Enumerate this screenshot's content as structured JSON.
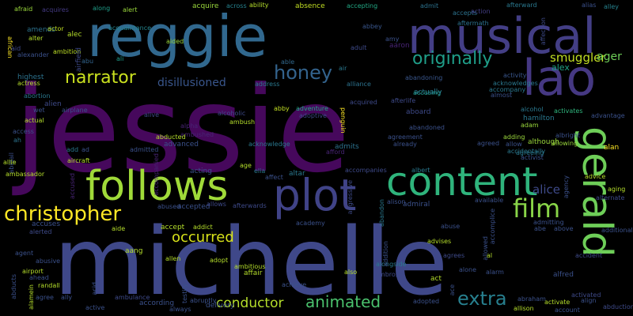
{
  "words": [
    {
      "text": "jessie",
      "color": "#46085c"
    },
    {
      "text": "michelle",
      "color": "#3f4889"
    },
    {
      "text": "reggie",
      "color": "#31688e"
    },
    {
      "text": "musical",
      "color": "#433e85"
    },
    {
      "text": "lao",
      "color": "#453882"
    },
    {
      "text": "content",
      "color": "#2fb47c"
    },
    {
      "text": "follows",
      "color": "#a0da39"
    },
    {
      "text": "plot",
      "color": "#404387"
    },
    {
      "text": "gerald",
      "color": "#6ece58"
    },
    {
      "text": "christopher",
      "color": "#fde725"
    },
    {
      "text": "film",
      "color": "#89d548"
    },
    {
      "text": "animated",
      "color": "#4ac16d"
    },
    {
      "text": "extra",
      "color": "#277f8e"
    },
    {
      "text": "narrator",
      "color": "#cae11f"
    },
    {
      "text": "honey",
      "color": "#33638d"
    },
    {
      "text": "originally",
      "color": "#1f9e89"
    },
    {
      "text": "smuggler",
      "color": "#c2df23"
    },
    {
      "text": "occurred",
      "color": "#d8e219"
    },
    {
      "text": "conductor",
      "color": "#b5de2b"
    },
    {
      "text": "disillusioned",
      "color": "#39568c"
    },
    {
      "text": "alice",
      "color": "#3e4a89"
    },
    {
      "text": "ager",
      "color": "#6ece58"
    },
    {
      "text": "alex",
      "color": "#20a386"
    },
    {
      "text": "afraid",
      "color": "#9bd93c"
    },
    {
      "text": "acquires",
      "color": "#443a83"
    },
    {
      "text": "along",
      "color": "#1f9e89"
    },
    {
      "text": "alert",
      "color": "#9bd93c"
    },
    {
      "text": "acquire",
      "color": "#9bd93c"
    },
    {
      "text": "across",
      "color": "#26828e"
    },
    {
      "text": "ability",
      "color": "#b5de2b"
    },
    {
      "text": "absence",
      "color": "#c2df23"
    },
    {
      "text": "accepting",
      "color": "#22a884"
    },
    {
      "text": "admit",
      "color": "#2c728e"
    },
    {
      "text": "afterward",
      "color": "#2a788e"
    },
    {
      "text": "alias",
      "color": "#3b518b"
    },
    {
      "text": "alley",
      "color": "#26828e"
    },
    {
      "text": "accepts",
      "color": "#2c728e"
    },
    {
      "text": "aftermath",
      "color": "#2c728e"
    },
    {
      "text": "action",
      "color": "#433e85"
    },
    {
      "text": "acquaintance",
      "color": "#25858e"
    },
    {
      "text": "amends",
      "color": "#2c728e"
    },
    {
      "text": "actor",
      "color": "#c2df23"
    },
    {
      "text": "alter",
      "color": "#b5de2b"
    },
    {
      "text": "alec",
      "color": "#b5de2b"
    },
    {
      "text": "aid",
      "color": "#3e4a89"
    },
    {
      "text": "alexander",
      "color": "#3b518b"
    },
    {
      "text": "ambition",
      "color": "#bddf26"
    },
    {
      "text": "abu",
      "color": "#32648e"
    },
    {
      "text": "ali",
      "color": "#1e9b8a"
    },
    {
      "text": "aided",
      "color": "#9bd93c"
    },
    {
      "text": "able",
      "color": "#31688e"
    },
    {
      "text": "adult",
      "color": "#3e4a89"
    },
    {
      "text": "amy",
      "color": "#3b518b"
    },
    {
      "text": "aaron",
      "color": "#482475"
    },
    {
      "text": "abbey",
      "color": "#39568c"
    },
    {
      "text": "african",
      "color": "#fde725"
    },
    {
      "text": "highest",
      "color": "#2c728e"
    },
    {
      "text": "actress",
      "color": "#b5de2b"
    },
    {
      "text": "address",
      "color": "#2a788e"
    },
    {
      "text": "air",
      "color": "#2a788e"
    },
    {
      "text": "alliance",
      "color": "#2c728e"
    },
    {
      "text": "abandoning",
      "color": "#39568c"
    },
    {
      "text": "accusing",
      "color": "#1f9e89"
    },
    {
      "text": "activity",
      "color": "#39568c"
    },
    {
      "text": "acknowledges",
      "color": "#2a788e"
    },
    {
      "text": "accompany",
      "color": "#2a788e"
    },
    {
      "text": "actually",
      "color": "#2a788e"
    },
    {
      "text": "almost",
      "color": "#3b518b"
    },
    {
      "text": "abortion",
      "color": "#2a788e"
    },
    {
      "text": "alien",
      "color": "#3e4a89"
    },
    {
      "text": "wet",
      "color": "#3b518b"
    },
    {
      "text": "airplane",
      "color": "#3b518b"
    },
    {
      "text": "alive",
      "color": "#3e4a89"
    },
    {
      "text": "alcoholic",
      "color": "#3e4a89"
    },
    {
      "text": "abby",
      "color": "#c2df23"
    },
    {
      "text": "adventure",
      "color": "#22a884"
    },
    {
      "text": "adoptive",
      "color": "#3e4a89"
    },
    {
      "text": "acquired",
      "color": "#3e4a89"
    },
    {
      "text": "afterlife",
      "color": "#3e4a89"
    },
    {
      "text": "aboard",
      "color": "#3e4a89"
    },
    {
      "text": "alcohol",
      "color": "#2a788e"
    },
    {
      "text": "activates",
      "color": "#2fb47c"
    },
    {
      "text": "hamilton",
      "color": "#2a788e"
    },
    {
      "text": "adam",
      "color": "#9bd93c"
    },
    {
      "text": "advantage",
      "color": "#3b518b"
    },
    {
      "text": "actual",
      "color": "#b5de2b"
    },
    {
      "text": "ah",
      "color": "#2c728e"
    },
    {
      "text": "access",
      "color": "#3b518b"
    },
    {
      "text": "ambush",
      "color": "#b5de2b"
    },
    {
      "text": "alpha",
      "color": "#482475"
    },
    {
      "text": "ambushed",
      "color": "#482475"
    },
    {
      "text": "abducted",
      "color": "#b5de2b"
    },
    {
      "text": "advanced",
      "color": "#3b518b"
    },
    {
      "text": "admitted",
      "color": "#3b518b"
    },
    {
      "text": "acknowledge",
      "color": "#2a788e"
    },
    {
      "text": "admits",
      "color": "#2c728e"
    },
    {
      "text": "penguin",
      "color": "#fde725"
    },
    {
      "text": "abandoned",
      "color": "#3b518b"
    },
    {
      "text": "agreement",
      "color": "#3b518b"
    },
    {
      "text": "already",
      "color": "#3b518b"
    },
    {
      "text": "agreed",
      "color": "#3b518b"
    },
    {
      "text": "adding",
      "color": "#9bd93c"
    },
    {
      "text": "allow",
      "color": "#3b518b"
    },
    {
      "text": "albright",
      "color": "#3b518b"
    },
    {
      "text": "allowing",
      "color": "#9bd93c"
    },
    {
      "text": "although",
      "color": "#9bd93c"
    },
    {
      "text": "accidentally",
      "color": "#2a788e"
    },
    {
      "text": "agreeing",
      "color": "#2a788e"
    },
    {
      "text": "alan",
      "color": "#fde725"
    },
    {
      "text": "activist",
      "color": "#3b518b"
    },
    {
      "text": "add",
      "color": "#2a788e"
    },
    {
      "text": "ad",
      "color": "#3b518b"
    },
    {
      "text": "abigail",
      "color": "#3b518b"
    },
    {
      "text": "allie",
      "color": "#b5de2b"
    },
    {
      "text": "aircraft",
      "color": "#b5de2b"
    },
    {
      "text": "ambassador",
      "color": "#b5de2b"
    },
    {
      "text": "accused",
      "color": "#482475"
    },
    {
      "text": "accompanied",
      "color": "#482475"
    },
    {
      "text": "acting",
      "color": "#3b518b"
    },
    {
      "text": "age",
      "color": "#b5de2b"
    },
    {
      "text": "elia",
      "color": "#2a788e"
    },
    {
      "text": "altar",
      "color": "#2a788e"
    },
    {
      "text": "affect",
      "color": "#3b518b"
    },
    {
      "text": "afford",
      "color": "#482475"
    },
    {
      "text": "accompanies",
      "color": "#3e4a89"
    },
    {
      "text": "albert",
      "color": "#2a788e"
    },
    {
      "text": "advice",
      "color": "#b5de2b"
    },
    {
      "text": "aging",
      "color": "#b5de2b"
    },
    {
      "text": "agency",
      "color": "#3b518b"
    },
    {
      "text": "alternate",
      "color": "#3e4a89"
    },
    {
      "text": "alison",
      "color": "#3b518b"
    },
    {
      "text": "admiral",
      "color": "#3b518b"
    },
    {
      "text": "available",
      "color": "#3b518b"
    },
    {
      "text": "abused",
      "color": "#3b518b"
    },
    {
      "text": "accepted",
      "color": "#3b518b"
    },
    {
      "text": "allows",
      "color": "#3e4a89"
    },
    {
      "text": "afterwards",
      "color": "#3e4a89"
    },
    {
      "text": "aggressive",
      "color": "#3e4a89"
    },
    {
      "text": "abandon",
      "color": "#2a788e"
    },
    {
      "text": "abuse",
      "color": "#3b518b"
    },
    {
      "text": "admitting",
      "color": "#3b518b"
    },
    {
      "text": "abe",
      "color": "#3b518b"
    },
    {
      "text": "above",
      "color": "#3b518b"
    },
    {
      "text": "additional",
      "color": "#3b518b"
    },
    {
      "text": "accuses",
      "color": "#3b518b"
    },
    {
      "text": "alerted",
      "color": "#3e4a89"
    },
    {
      "text": "aide",
      "color": "#b5de2b"
    },
    {
      "text": "accept",
      "color": "#b5de2b"
    },
    {
      "text": "addict",
      "color": "#b5de2b"
    },
    {
      "text": "academy",
      "color": "#3b518b"
    },
    {
      "text": "accomplice",
      "color": "#3b518b"
    },
    {
      "text": "agent",
      "color": "#3b518b"
    },
    {
      "text": "abusive",
      "color": "#3b518b"
    },
    {
      "text": "airport",
      "color": "#b5de2b"
    },
    {
      "text": "ahead",
      "color": "#3b518b"
    },
    {
      "text": "randall",
      "color": "#b5de2b"
    },
    {
      "text": "allen",
      "color": "#b5de2b"
    },
    {
      "text": "aang",
      "color": "#b5de2b"
    },
    {
      "text": "adopt",
      "color": "#b5de2b"
    },
    {
      "text": "ambitious",
      "color": "#b5de2b"
    },
    {
      "text": "affair",
      "color": "#b5de2b"
    },
    {
      "text": "alongside",
      "color": "#2a788e"
    },
    {
      "text": "advises",
      "color": "#b5de2b"
    },
    {
      "text": "agrees",
      "color": "#3e4a89"
    },
    {
      "text": "allowed",
      "color": "#3b518b"
    },
    {
      "text": "al",
      "color": "#b5de2b"
    },
    {
      "text": "accident",
      "color": "#3e4a89"
    },
    {
      "text": "addition",
      "color": "#3b518b"
    },
    {
      "text": "alone",
      "color": "#3b518b"
    },
    {
      "text": "alarm",
      "color": "#3b518b"
    },
    {
      "text": "alfred",
      "color": "#3b518b"
    },
    {
      "text": "ambrose",
      "color": "#3e4a89"
    },
    {
      "text": "also",
      "color": "#b5de2b"
    },
    {
      "text": "act",
      "color": "#b5de2b"
    },
    {
      "text": "achieve",
      "color": "#3b518b"
    },
    {
      "text": "testify",
      "color": "#3b518b"
    },
    {
      "text": "abducts",
      "color": "#3b518b"
    },
    {
      "text": "alamein",
      "color": "#b5de2b"
    },
    {
      "text": "agree",
      "color": "#3b518b"
    },
    {
      "text": "ally",
      "color": "#3b518b"
    },
    {
      "text": "ambulance",
      "color": "#3e4a89"
    },
    {
      "text": "acid",
      "color": "#3b518b"
    },
    {
      "text": "abruptly",
      "color": "#3b518b"
    },
    {
      "text": "according",
      "color": "#3b518b"
    },
    {
      "text": "active",
      "color": "#3b518b"
    },
    {
      "text": "always",
      "color": "#3b518b"
    },
    {
      "text": "delivery",
      "color": "#3b518b"
    },
    {
      "text": "adopted",
      "color": "#3b518b"
    },
    {
      "text": "ace",
      "color": "#3b518b"
    },
    {
      "text": "abraham",
      "color": "#3b518b"
    },
    {
      "text": "activate",
      "color": "#b5de2b"
    },
    {
      "text": "allison",
      "color": "#b5de2b"
    },
    {
      "text": "account",
      "color": "#3b518b"
    },
    {
      "text": "activated",
      "color": "#3e4a89"
    },
    {
      "text": "align",
      "color": "#3b518b"
    },
    {
      "text": "abduction",
      "color": "#3e4a89"
    },
    {
      "text": "airfield",
      "color": "#3e4a89"
    },
    {
      "text": "affection",
      "color": "#3e4a89"
    }
  ]
}
